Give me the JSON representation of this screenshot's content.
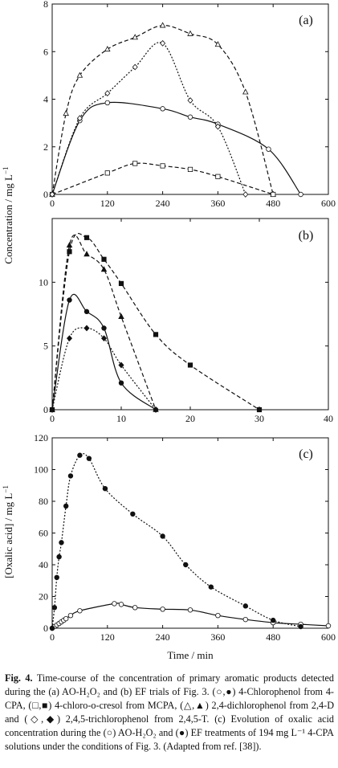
{
  "chart_data": [
    {
      "panel": "(a)",
      "type": "line",
      "xlim": [
        0,
        600
      ],
      "ylim": [
        0,
        8
      ],
      "xticks": [
        0,
        120,
        240,
        360,
        480,
        600
      ],
      "yticks": [
        0,
        2,
        4,
        6,
        8
      ],
      "series": [
        {
          "marker": "open-circle",
          "style": "solid",
          "x": [
            0,
            60,
            120,
            240,
            300,
            360,
            470,
            540
          ],
          "y": [
            0,
            3.1,
            3.85,
            3.6,
            3.25,
            2.95,
            1.9,
            0
          ]
        },
        {
          "marker": "open-triangle",
          "style": "dashed",
          "x": [
            0,
            30,
            60,
            120,
            180,
            240,
            300,
            360,
            420,
            480
          ],
          "y": [
            0,
            3.4,
            5.0,
            6.1,
            6.6,
            7.1,
            6.75,
            6.3,
            4.3,
            0
          ]
        },
        {
          "marker": "open-square",
          "style": "dashed",
          "x": [
            0,
            120,
            180,
            240,
            300,
            360,
            480
          ],
          "y": [
            0,
            0.9,
            1.3,
            1.2,
            1.05,
            0.75,
            0
          ]
        },
        {
          "marker": "open-diamond",
          "style": "dotted",
          "x": [
            0,
            60,
            120,
            180,
            240,
            300,
            360,
            420
          ],
          "y": [
            0,
            3.2,
            4.25,
            5.35,
            6.35,
            3.95,
            2.85,
            0
          ]
        }
      ]
    },
    {
      "panel": "(b)",
      "type": "line",
      "xlim": [
        0,
        40
      ],
      "ylim": [
        0,
        15
      ],
      "xticks": [
        0,
        10,
        20,
        30,
        40
      ],
      "yticks": [
        0,
        5,
        10
      ],
      "series": [
        {
          "marker": "filled-circle",
          "style": "solid",
          "x": [
            0,
            2.5,
            5,
            7.5,
            10,
            15
          ],
          "y": [
            0,
            8.6,
            7.7,
            6.4,
            2.1,
            0
          ]
        },
        {
          "marker": "filled-triangle",
          "style": "dashed",
          "x": [
            0,
            2.5,
            5,
            7.5,
            10,
            15
          ],
          "y": [
            0,
            12.9,
            12.2,
            11.0,
            7.3,
            0
          ]
        },
        {
          "marker": "filled-square",
          "style": "dashed",
          "x": [
            0,
            2.5,
            5,
            7.5,
            10,
            15,
            20,
            30
          ],
          "y": [
            0,
            12.4,
            13.5,
            11.8,
            9.9,
            5.9,
            3.5,
            0
          ]
        },
        {
          "marker": "filled-diamond",
          "style": "dotted",
          "x": [
            0,
            2.5,
            5,
            7.5,
            10,
            15
          ],
          "y": [
            0,
            5.6,
            6.4,
            5.6,
            3.5,
            0
          ]
        }
      ]
    },
    {
      "panel": "(c)",
      "type": "line",
      "xlim": [
        0,
        600
      ],
      "ylim": [
        0,
        120
      ],
      "xticks": [
        0,
        120,
        240,
        360,
        480,
        600
      ],
      "yticks": [
        0,
        20,
        40,
        60,
        80,
        100,
        120
      ],
      "series": [
        {
          "marker": "open-circle",
          "style": "solid",
          "x": [
            0,
            5,
            10,
            15,
            20,
            25,
            30,
            40,
            60,
            135,
            150,
            180,
            240,
            300,
            360,
            420,
            480,
            540,
            600
          ],
          "y": [
            0,
            1,
            2,
            3,
            4,
            5,
            6,
            8,
            11,
            15.5,
            15,
            13,
            12,
            11.5,
            8,
            5.5,
            3.5,
            2.5,
            1.5
          ]
        },
        {
          "marker": "filled-circle",
          "style": "dotted",
          "x": [
            0,
            5,
            10,
            15,
            20,
            30,
            40,
            60,
            80,
            115,
            175,
            240,
            290,
            345,
            420,
            480,
            540
          ],
          "y": [
            0,
            13,
            32,
            45,
            54,
            77,
            96,
            109,
            107,
            88,
            72,
            58,
            40,
            26,
            14,
            5,
            1
          ]
        }
      ]
    }
  ],
  "labels": {
    "panel_a": "(a)",
    "panel_b": "(b)",
    "panel_c": "(c)",
    "y_label_ab": "Concentration / mg L",
    "y_label_ab_sup": "−1",
    "y_label_c": "[Oxalic acid] / mg L",
    "y_label_c_sup": "−1",
    "x_label": "Time / min"
  },
  "caption": {
    "figure": "Fig. 4.",
    "text": "Time-course of the concentration of primary aromatic products detected during the (a) AO-H₂O₂ and (b) EF trials of Fig. 3. (○,●) 4-Chlorophenol from 4-CPA, (□,■) 4-chloro-o-cresol from MCPA, (△,▲) 2,4-dichlorophenol from 2,4-D and (◇,◆) 2,4,5-trichlorophenol from 2,4,5-T. (c) Evolution of oxalic acid concentration during the (○) AO-H₂O₂ and (●) EF treatments of 194 mg L⁻¹ 4-CPA solutions under the conditions of Fig. 3. (Adapted from ref. [38])."
  }
}
